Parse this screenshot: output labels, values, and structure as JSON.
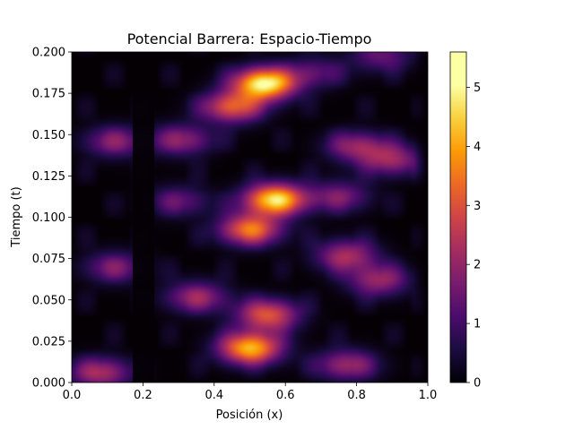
{
  "chart_data": {
    "type": "heatmap",
    "title": "Potencial Barrera: Espacio-Tiempo",
    "xlabel": "Posición (x)",
    "ylabel": "Tiempo (t)",
    "xlim": [
      0.0,
      1.0
    ],
    "ylim": [
      0.0,
      0.2
    ],
    "x_ticks": [
      "0.0",
      "0.2",
      "0.4",
      "0.6",
      "0.8",
      "1.0"
    ],
    "y_ticks": [
      "0.000",
      "0.025",
      "0.050",
      "0.075",
      "0.100",
      "0.125",
      "0.150",
      "0.175",
      "0.200"
    ],
    "colormap": "inferno",
    "colorbar": {
      "range": [
        0,
        5.6
      ],
      "ticks": [
        "0",
        "1",
        "2",
        "3",
        "4",
        "5"
      ]
    },
    "barrier_x": [
      0.18,
      0.22
    ],
    "hotspots": [
      {
        "x": 0.54,
        "t": 0.181,
        "value": 5.0
      },
      {
        "x": 0.57,
        "t": 0.111,
        "value": 4.6
      },
      {
        "x": 0.5,
        "t": 0.021,
        "value": 4.2
      },
      {
        "x": 0.5,
        "t": 0.093,
        "value": 3.4
      },
      {
        "x": 0.55,
        "t": 0.041,
        "value": 3.0
      },
      {
        "x": 0.45,
        "t": 0.167,
        "value": 3.0
      },
      {
        "x": 0.77,
        "t": 0.077,
        "value": 2.2
      },
      {
        "x": 0.86,
        "t": 0.062,
        "value": 2.0
      },
      {
        "x": 0.8,
        "t": 0.143,
        "value": 1.9
      },
      {
        "x": 0.9,
        "t": 0.135,
        "value": 2.0
      },
      {
        "x": 0.77,
        "t": 0.011,
        "value": 2.0
      },
      {
        "x": 0.75,
        "t": 0.113,
        "value": 1.6
      },
      {
        "x": 0.35,
        "t": 0.052,
        "value": 2.0
      },
      {
        "x": 0.31,
        "t": 0.147,
        "value": 1.8
      },
      {
        "x": 0.12,
        "t": 0.146,
        "value": 1.7
      },
      {
        "x": 0.12,
        "t": 0.07,
        "value": 1.6
      },
      {
        "x": 0.08,
        "t": 0.006,
        "value": 2.2
      },
      {
        "x": 0.87,
        "t": 0.198,
        "value": 1.4
      },
      {
        "x": 0.68,
        "t": 0.188,
        "value": 1.2
      },
      {
        "x": 0.3,
        "t": 0.11,
        "value": 1.3
      }
    ]
  }
}
